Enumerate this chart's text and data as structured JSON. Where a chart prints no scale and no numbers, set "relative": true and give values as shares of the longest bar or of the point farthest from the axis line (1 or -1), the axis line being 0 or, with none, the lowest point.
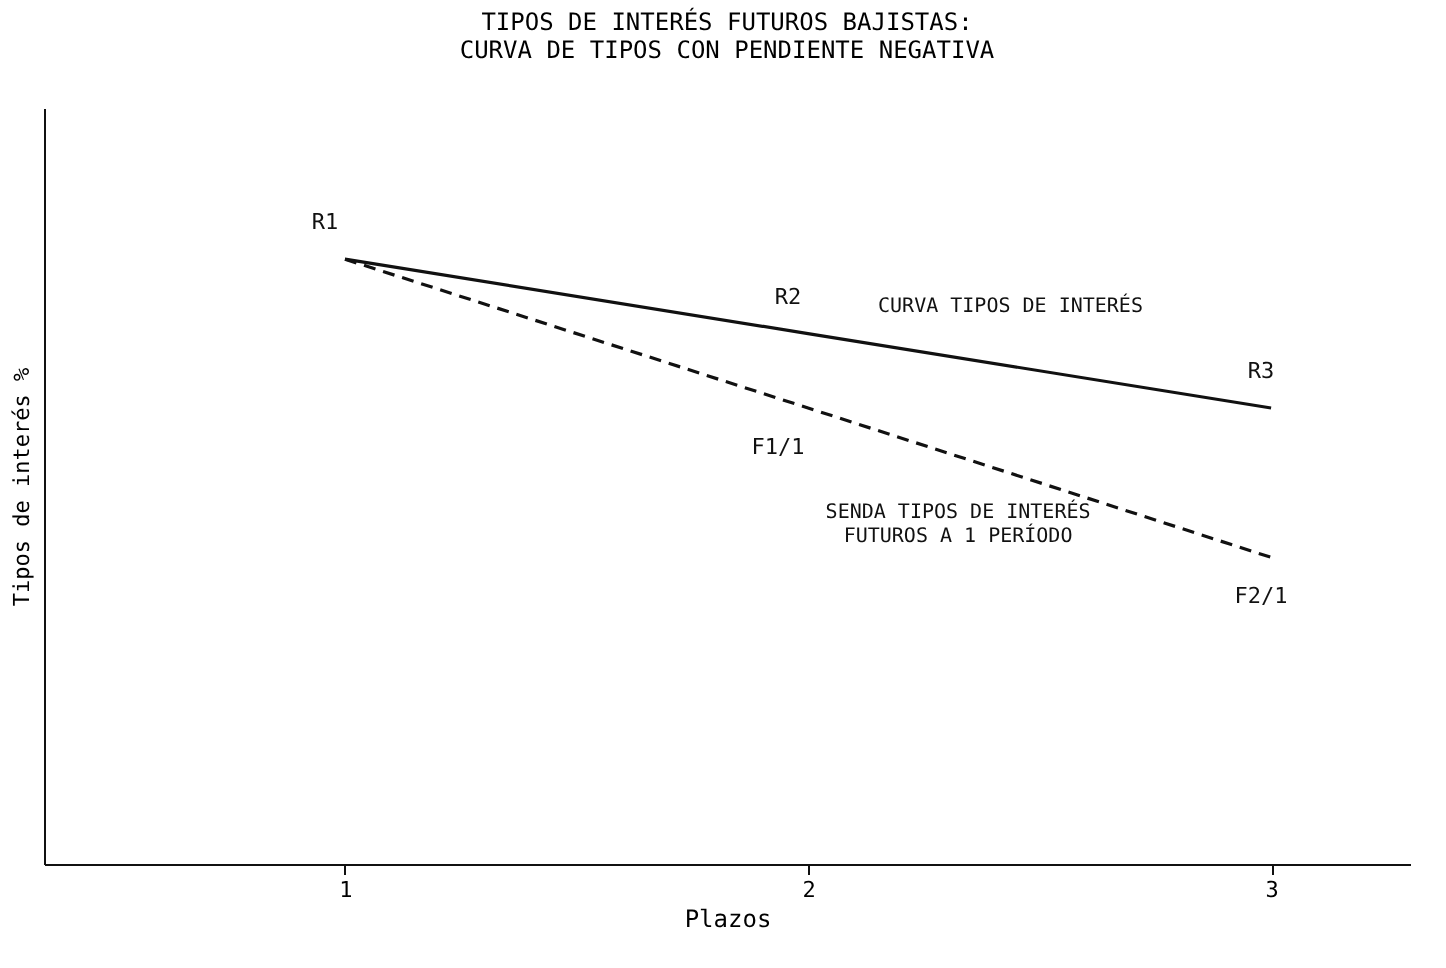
{
  "chart_data": {
    "type": "line",
    "title": [
      "TIPOS DE INTERÉS FUTUROS BAJISTAS:",
      "CURVA DE TIPOS CON PENDIENTE NEGATIVA"
    ],
    "ylabel": "Tipos de interés %",
    "xlabel": "Plazos",
    "relative": true,
    "x": [
      1,
      2,
      3
    ],
    "xlim": [
      0.35,
      3.3
    ],
    "xticks": [
      1,
      2,
      3
    ],
    "grid": false,
    "legend": false,
    "marker": "none",
    "series": [
      {
        "name": "CURVA TIPOS DE INTERÉS",
        "color": "#111111",
        "line_style": "solid",
        "values": [
          1,
          0.877,
          0.754
        ]
      },
      {
        "name": "SENDA TIPOS DE INTERÉS\nFUTUROS A 1 PERÍODO",
        "color": "#111111",
        "line_style": "dashed",
        "values": [
          1,
          0.754,
          0.507
        ]
      }
    ],
    "annotations": [
      {
        "text": "R1",
        "x": 1,
        "y": 1
      },
      {
        "text": "R2",
        "x": 2,
        "y": 0.877
      },
      {
        "text": "R3",
        "x": 3,
        "y": 0.754
      },
      {
        "text": "F1/1",
        "x": 2,
        "y": 0.754
      },
      {
        "text": "F2/1",
        "x": 3,
        "y": 0.507
      }
    ]
  }
}
